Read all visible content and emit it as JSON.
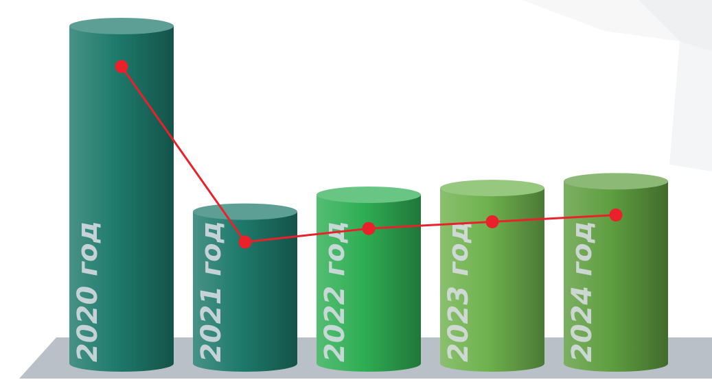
{
  "chart_data": {
    "type": "bar",
    "categories": [
      "2020 год",
      "2021 год",
      "2022 год",
      "2023 год",
      "2024 год"
    ],
    "bar_values": [
      100,
      45,
      50,
      52,
      54
    ],
    "line_values": [
      88,
      36,
      40,
      42,
      44
    ],
    "xlabel": "",
    "ylabel": "",
    "grid": false,
    "legend": "none",
    "style": "3d-cylinder"
  },
  "colors": {
    "bars": [
      "#1e7a6b",
      "#1e7a6b",
      "#2fae54",
      "#6fb24e",
      "#5f9e40"
    ],
    "line": "#e8212a",
    "floor": "#b9c0c7"
  }
}
